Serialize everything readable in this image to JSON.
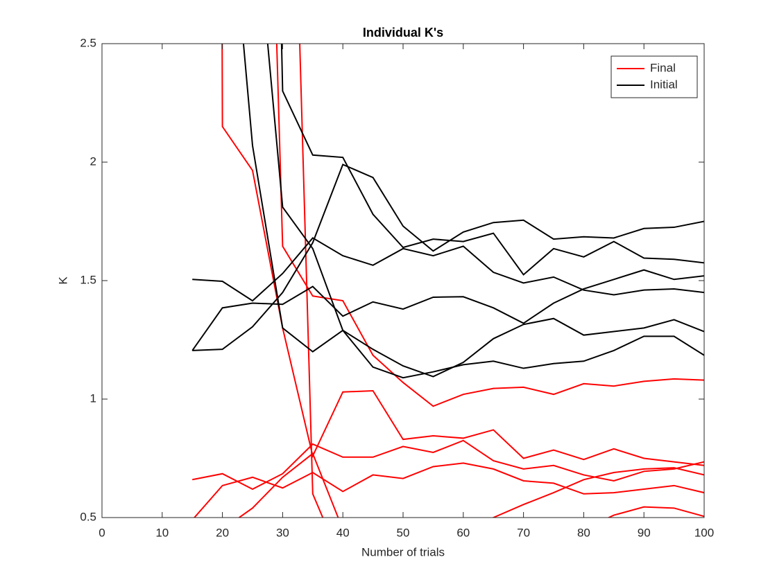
{
  "chart_data": {
    "type": "line",
    "title": "Individual K's",
    "xlabel": "Number of trials",
    "ylabel": "K",
    "x": [
      15,
      20,
      25,
      30,
      35,
      40,
      45,
      50,
      55,
      60,
      65,
      70,
      75,
      80,
      85,
      90,
      95,
      100
    ],
    "xlim": [
      0,
      100
    ],
    "xticks": [
      0,
      10,
      20,
      30,
      40,
      50,
      60,
      70,
      80,
      90,
      100
    ],
    "ylim": [
      0.5,
      2.5
    ],
    "yticks": [
      0.5,
      1,
      1.5,
      2,
      2.5
    ],
    "grid": false,
    "legend": "northeast",
    "series": [
      {
        "name": "Final",
        "color": "#ff0000",
        "lines": [
          [
            40,
            2.15,
            1.965,
            1.3,
            0.76,
            1.03,
            1.035,
            0.83,
            0.845,
            0.835,
            0.87,
            0.75,
            0.785,
            0.745,
            0.79,
            0.75,
            0.735,
            0.72
          ],
          [
            0.66,
            0.685,
            0.62,
            0.685,
            0.81,
            0.755,
            0.755,
            0.8,
            0.775,
            0.825,
            0.74,
            0.705,
            0.72,
            0.68,
            0.655,
            0.695,
            0.705,
            0.735
          ],
          [
            0.49,
            0.635,
            0.67,
            0.625,
            0.69,
            0.61,
            0.68,
            0.665,
            0.715,
            0.73,
            0.705,
            0.655,
            0.645,
            0.6,
            0.605,
            0.62,
            0.635,
            0.605
          ],
          [
            null,
            0.45,
            0.54,
            0.67,
            0.77,
            0.45,
            0.4,
            0.4,
            0.4,
            0.45,
            0.5,
            0.555,
            0.605,
            0.66,
            0.69,
            0.705,
            0.71,
            0.68
          ],
          [
            null,
            null,
            null,
            5,
            0.6,
            0.3,
            0.3,
            0.35,
            0.4,
            0.4,
            0.4,
            0.4,
            0.42,
            0.45,
            0.51,
            0.545,
            0.54,
            0.505
          ],
          [
            null,
            null,
            6,
            1.645,
            1.435,
            1.415,
            1.185,
            1.07,
            0.97,
            1.02,
            1.045,
            1.05,
            1.02,
            1.065,
            1.055,
            1.075,
            1.085,
            1.08
          ]
        ]
      },
      {
        "name": "Initial",
        "color": "#000000",
        "lines": [
          [
            1.505,
            1.497,
            1.415,
            1.53,
            1.68,
            1.605,
            1.565,
            1.635,
            1.605,
            1.645,
            1.535,
            1.49,
            1.515,
            1.46,
            1.44,
            1.46,
            1.465,
            1.45
          ],
          [
            1.205,
            1.385,
            1.405,
            1.4,
            1.475,
            1.35,
            1.41,
            1.38,
            1.43,
            1.432,
            1.385,
            1.32,
            1.405,
            1.465,
            1.505,
            1.545,
            1.505,
            1.52
          ],
          [
            1.205,
            1.21,
            1.305,
            1.45,
            1.66,
            1.99,
            1.935,
            1.73,
            1.625,
            1.705,
            1.745,
            1.755,
            1.675,
            1.685,
            1.68,
            1.72,
            1.725,
            1.75
          ],
          [
            null,
            3.5,
            2.07,
            1.3,
            1.2,
            1.29,
            1.21,
            1.14,
            1.095,
            1.155,
            1.255,
            1.315,
            1.34,
            1.27,
            1.285,
            1.3,
            1.335,
            1.285
          ],
          [
            null,
            null,
            8,
            2.3,
            2.03,
            2.02,
            1.78,
            1.64,
            1.675,
            1.665,
            1.7,
            1.525,
            1.635,
            1.6,
            1.665,
            1.595,
            1.59,
            1.575
          ],
          [
            null,
            null,
            3.2,
            1.81,
            1.635,
            1.29,
            1.135,
            1.09,
            1.115,
            1.145,
            1.16,
            1.13,
            1.15,
            1.16,
            1.205,
            1.265,
            1.265,
            1.185
          ]
        ]
      }
    ]
  }
}
